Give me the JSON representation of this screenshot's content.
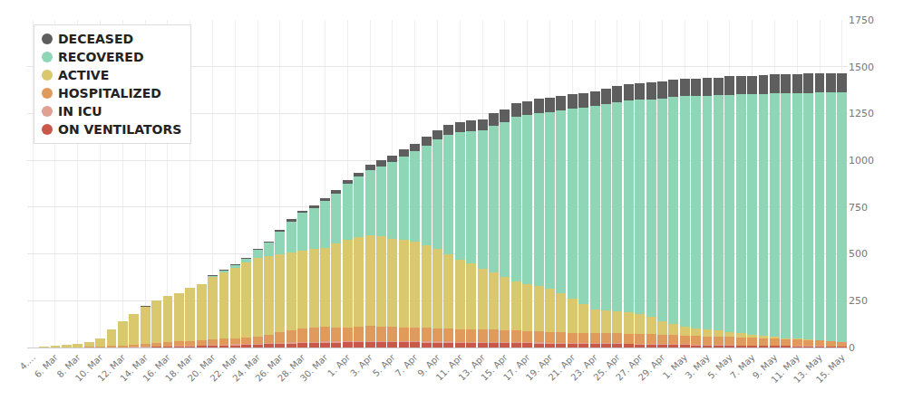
{
  "chart_data": {
    "type": "bar",
    "stacked": true,
    "grid": true,
    "legend": "top-left",
    "categories": [
      "4.…",
      null,
      "6. Mar",
      null,
      "8. Mar",
      null,
      "10. Mar",
      null,
      "12. Mar",
      null,
      "14. Mar",
      null,
      "16. Mar",
      null,
      "18. Mar",
      null,
      "20. Mar",
      null,
      "22. Mar",
      null,
      "24. Mar",
      null,
      "26. Mar",
      null,
      "28. Mar",
      null,
      "30. Mar",
      null,
      "1. Apr",
      null,
      "3. Apr",
      null,
      "5. Apr",
      null,
      "7. Apr",
      null,
      "9. Apr",
      null,
      "11. Apr",
      null,
      "13. Apr",
      null,
      "15. Apr",
      null,
      "17. Apr",
      null,
      "19. Apr",
      null,
      "21. Apr",
      null,
      "23. Apr",
      null,
      "25. Apr",
      null,
      "27. Apr",
      null,
      "29. Apr",
      null,
      "1. May",
      null,
      "3. May",
      null,
      "5. May",
      null,
      "7. May",
      null,
      "9. May",
      null,
      "11. May",
      null,
      "13. May",
      null,
      "15. May"
    ],
    "ylim": [
      0,
      1750
    ],
    "yticks": [
      0,
      250,
      500,
      750,
      1000,
      1250,
      1500,
      1750
    ],
    "series": [
      {
        "name": "DECEASED",
        "color": "#5e5e5e",
        "values": [
          0,
          0,
          0,
          0,
          0,
          0,
          0,
          0,
          0,
          0,
          1,
          1,
          1,
          1,
          1,
          1,
          2,
          2,
          3,
          4,
          5,
          6,
          9,
          11,
          12,
          14,
          16,
          17,
          20,
          22,
          28,
          34,
          36,
          40,
          43,
          45,
          50,
          53,
          55,
          56,
          62,
          66,
          68,
          70,
          74,
          76,
          77,
          79,
          79,
          80,
          81,
          83,
          84,
          86,
          87,
          88,
          91,
          92,
          92,
          93,
          95,
          96,
          97,
          98,
          100,
          101,
          101,
          102,
          102,
          103,
          103,
          103,
          103
        ]
      },
      {
        "name": "RECOVERED",
        "color": "#8fd6b6",
        "values": [
          0,
          0,
          0,
          0,
          0,
          0,
          0,
          0,
          0,
          0,
          0,
          0,
          0,
          0,
          0,
          0,
          5,
          10,
          15,
          20,
          40,
          70,
          125,
          165,
          200,
          220,
          250,
          265,
          300,
          323,
          347,
          371,
          409,
          445,
          482,
          535,
          585,
          637,
          680,
          706,
          738,
          784,
          827,
          880,
          903,
          924,
          943,
          976,
          1016,
          1050,
          1084,
          1104,
          1119,
          1131,
          1143,
          1162,
          1189,
          1213,
          1233,
          1244,
          1250,
          1257,
          1269,
          1276,
          1282,
          1290,
          1301,
          1308,
          1314,
          1317,
          1321,
          1327,
          1333
        ]
      },
      {
        "name": "ACTIVE",
        "color": "#dac86e",
        "values": [
          1,
          6,
          8,
          15,
          18,
          27,
          45,
          87,
          128,
          165,
          199,
          224,
          246,
          257,
          283,
          299,
          335,
          356,
          377,
          401,
          420,
          419,
          416,
          419,
          418,
          421,
          424,
          450,
          470,
          480,
          485,
          483,
          470,
          467,
          459,
          440,
          422,
          400,
          372,
          354,
          324,
          305,
          282,
          265,
          252,
          245,
          232,
          210,
          182,
          152,
          128,
          122,
          117,
          114,
          107,
          93,
          72,
          59,
          46,
          38,
          35,
          32,
          26,
          22,
          18,
          14,
          9,
          5,
          4,
          3,
          2,
          0,
          0
        ]
      },
      {
        "name": "HOSPITALIZED",
        "color": "#e09a5c",
        "values": [
          0,
          0,
          0,
          1,
          2,
          3,
          5,
          7,
          10,
          12,
          16,
          20,
          22,
          24,
          26,
          28,
          29,
          32,
          33,
          37,
          40,
          48,
          55,
          63,
          71,
          75,
          78,
          76,
          72,
          76,
          80,
          77,
          76,
          74,
          73,
          72,
          71,
          68,
          67,
          66,
          66,
          66,
          64,
          62,
          61,
          58,
          57,
          55,
          54,
          55,
          54,
          54,
          53,
          53,
          52,
          52,
          49,
          48,
          47,
          46,
          45,
          44,
          43,
          42,
          40,
          39,
          37,
          36,
          33,
          32,
          30,
          28,
          24
        ]
      },
      {
        "name": "IN ICU",
        "color": "#e0a092",
        "values": [
          0,
          0,
          0,
          0,
          0,
          0,
          0,
          1,
          2,
          2,
          2,
          2,
          2,
          3,
          3,
          4,
          4,
          4,
          5,
          5,
          5,
          5,
          6,
          6,
          6,
          6,
          7,
          6,
          6,
          7,
          7,
          7,
          7,
          7,
          6,
          7,
          6,
          7,
          6,
          6,
          6,
          6,
          6,
          6,
          5,
          6,
          5,
          5,
          5,
          4,
          5,
          4,
          5,
          4,
          5,
          4,
          4,
          4,
          4,
          4,
          3,
          3,
          3,
          2,
          3,
          2,
          2,
          1,
          2,
          1,
          2,
          1,
          1
        ]
      },
      {
        "name": "ON VENTILATORS",
        "color": "#c9584a",
        "values": [
          0,
          0,
          0,
          0,
          0,
          0,
          0,
          0,
          0,
          1,
          2,
          3,
          4,
          5,
          7,
          8,
          10,
          11,
          12,
          13,
          15,
          17,
          19,
          21,
          23,
          24,
          25,
          26,
          27,
          27,
          28,
          28,
          27,
          27,
          27,
          26,
          26,
          25,
          25,
          24,
          24,
          23,
          23,
          22,
          22,
          21,
          21,
          20,
          19,
          19,
          18,
          18,
          17,
          17,
          16,
          16,
          15,
          14,
          13,
          12,
          12,
          11,
          10,
          10,
          9,
          9,
          8,
          8,
          7,
          7,
          6,
          6,
          5
        ]
      }
    ]
  }
}
